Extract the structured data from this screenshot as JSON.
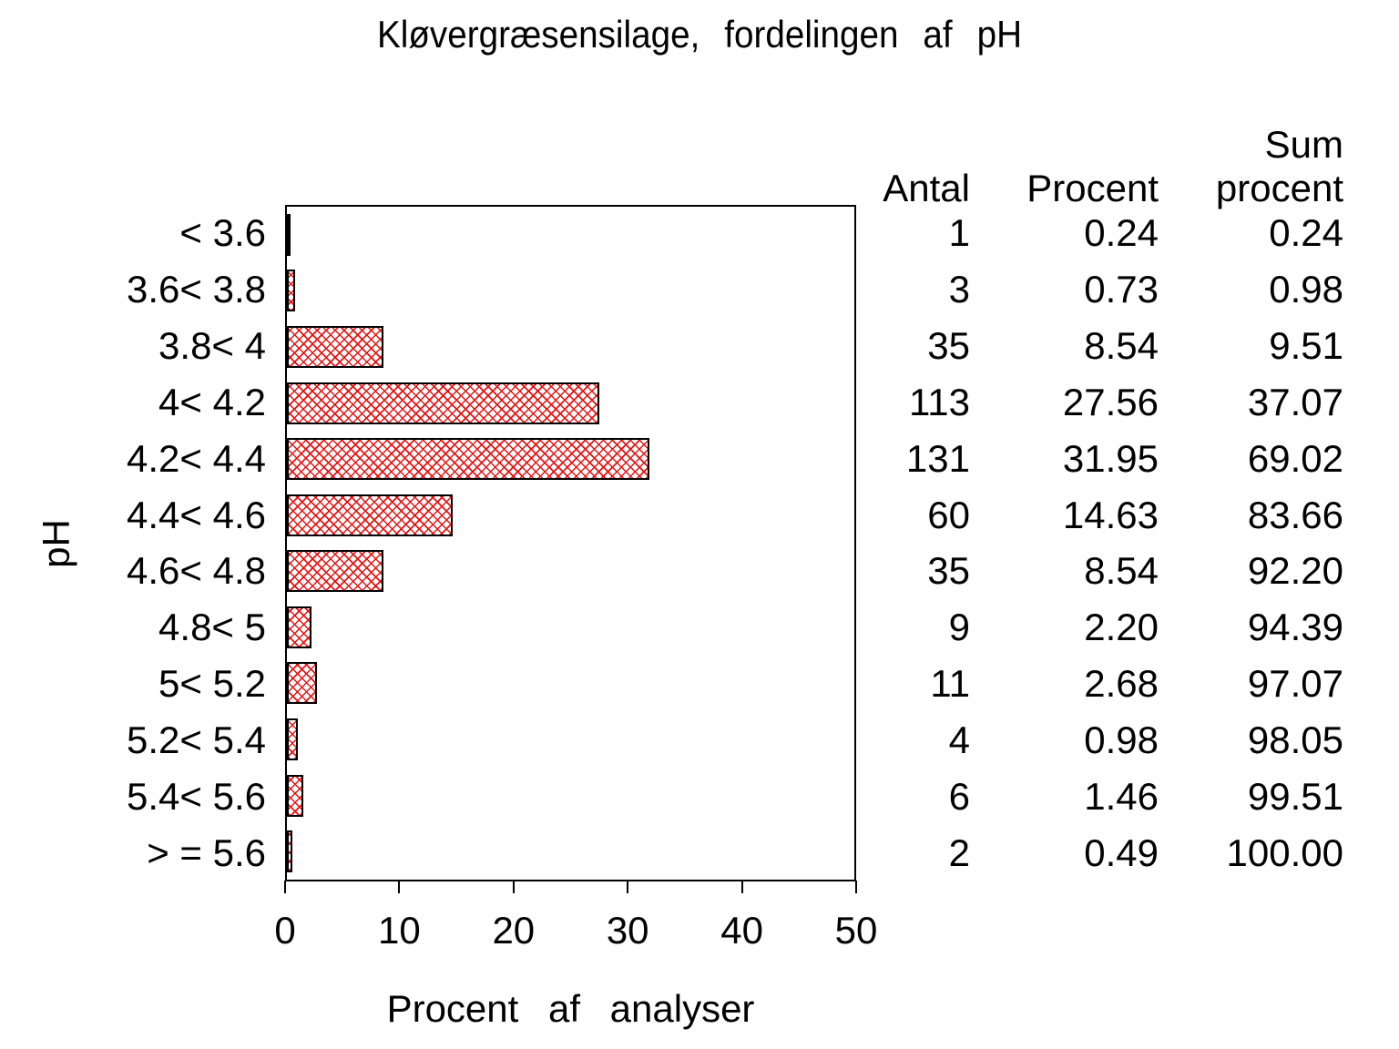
{
  "title": "Kløvergræsensilage,  fordelingen  af  pH",
  "y_axis": {
    "title": "pH"
  },
  "x_axis": {
    "title": "Procent  af  analyser",
    "min": 0,
    "max": 50,
    "ticks": [
      0,
      10,
      20,
      30,
      40,
      50
    ]
  },
  "colors": {
    "hatch": "#e81212",
    "bar_border": "#000000",
    "axis": "#000000",
    "text": "#000000",
    "background": "#ffffff"
  },
  "table": {
    "headers": {
      "antal": "Antal",
      "procent": "Procent",
      "sum_line1": "Sum",
      "sum_line2": "procent"
    },
    "rows": [
      {
        "label": "< 3.6",
        "antal": "1",
        "procent": "0.24",
        "sum": "0.24"
      },
      {
        "label": "3.6< 3.8",
        "antal": "3",
        "procent": "0.73",
        "sum": "0.98"
      },
      {
        "label": "3.8< 4",
        "antal": "35",
        "procent": "8.54",
        "sum": "9.51"
      },
      {
        "label": "4< 4.2",
        "antal": "113",
        "procent": "27.56",
        "sum": "37.07"
      },
      {
        "label": "4.2< 4.4",
        "antal": "131",
        "procent": "31.95",
        "sum": "69.02"
      },
      {
        "label": "4.4< 4.6",
        "antal": "60",
        "procent": "14.63",
        "sum": "83.66"
      },
      {
        "label": "4.6< 4.8",
        "antal": "35",
        "procent": "8.54",
        "sum": "92.20"
      },
      {
        "label": "4.8< 5",
        "antal": "9",
        "procent": "2.20",
        "sum": "94.39"
      },
      {
        "label": "5< 5.2",
        "antal": "11",
        "procent": "2.68",
        "sum": "97.07"
      },
      {
        "label": "5.2< 5.4",
        "antal": "4",
        "procent": "0.98",
        "sum": "98.05"
      },
      {
        "label": "5.4< 5.6",
        "antal": "6",
        "procent": "1.46",
        "sum": "99.51"
      },
      {
        "label": "> = 5.6",
        "antal": "2",
        "procent": "0.49",
        "sum": "100.00"
      }
    ]
  },
  "chart_data": {
    "type": "bar",
    "orientation": "horizontal",
    "title": "Kløvergræsensilage, fordelingen af pH",
    "xlabel": "Procent af analyser",
    "ylabel": "pH",
    "categories": [
      "< 3.6",
      "3.6< 3.8",
      "3.8< 4",
      "4< 4.2",
      "4.2< 4.4",
      "4.4< 4.6",
      "4.6< 4.8",
      "4.8< 5",
      "5< 5.2",
      "5.2< 5.4",
      "5.4< 5.6",
      "> = 5.6"
    ],
    "series": [
      {
        "name": "Antal",
        "values": [
          1,
          3,
          35,
          113,
          131,
          60,
          35,
          9,
          11,
          4,
          6,
          2
        ]
      },
      {
        "name": "Procent",
        "values": [
          0.24,
          0.73,
          8.54,
          27.56,
          31.95,
          14.63,
          8.54,
          2.2,
          2.68,
          0.98,
          1.46,
          0.49
        ]
      },
      {
        "name": "Sum procent",
        "values": [
          0.24,
          0.98,
          9.51,
          37.07,
          69.02,
          83.66,
          92.2,
          94.39,
          97.07,
          98.05,
          99.51,
          100.0
        ]
      }
    ],
    "bar_value_series": "Procent",
    "xlim": [
      0,
      50
    ],
    "xticks": [
      0,
      10,
      20,
      30,
      40,
      50
    ],
    "grid": false,
    "legend": "none",
    "bar_style": {
      "pattern": "diagonal-crosshatch",
      "hatch_color": "#e81212",
      "border_color": "#000000",
      "fill": "#ffffff"
    }
  }
}
